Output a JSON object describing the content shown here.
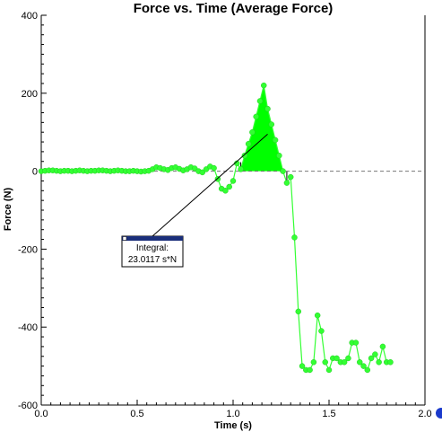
{
  "chart_data": {
    "type": "line",
    "title": "Force vs. Time (Average Force)",
    "xlabel": "Time (s)",
    "ylabel": "Force (N)",
    "xlim": [
      0.0,
      2.0
    ],
    "ylim": [
      -600,
      400
    ],
    "x_ticks": [
      "0.0",
      "0.5",
      "1.0",
      "1.5",
      "2.0"
    ],
    "y_ticks": [
      "400",
      "200",
      "0",
      "-200",
      "-400",
      "-600"
    ],
    "x_tick_values": [
      0,
      0.5,
      1.0,
      1.5,
      2.0
    ],
    "y_tick_values": [
      400,
      200,
      0,
      -200,
      -400,
      -600
    ],
    "zero_line": "dashed",
    "series": [
      {
        "color": "#33ff33",
        "x": [
          0.0,
          0.02,
          0.04,
          0.06,
          0.08,
          0.1,
          0.12,
          0.14,
          0.16,
          0.18,
          0.2,
          0.22,
          0.24,
          0.26,
          0.28,
          0.3,
          0.32,
          0.34,
          0.36,
          0.38,
          0.4,
          0.42,
          0.44,
          0.46,
          0.48,
          0.5,
          0.52,
          0.54,
          0.56,
          0.58,
          0.6,
          0.62,
          0.64,
          0.66,
          0.68,
          0.7,
          0.72,
          0.74,
          0.76,
          0.78,
          0.8,
          0.82,
          0.84,
          0.86,
          0.88,
          0.9,
          0.92,
          0.94,
          0.96,
          0.98,
          1.0,
          1.02,
          1.04,
          1.06,
          1.08,
          1.1,
          1.12,
          1.14,
          1.16,
          1.18,
          1.2,
          1.22,
          1.24,
          1.26,
          1.28,
          1.3,
          1.32,
          1.34,
          1.36,
          1.38,
          1.4,
          1.42,
          1.44,
          1.46,
          1.48,
          1.5,
          1.52,
          1.54,
          1.56,
          1.58,
          1.6,
          1.62,
          1.64,
          1.66,
          1.68,
          1.7,
          1.72,
          1.74,
          1.76,
          1.78,
          1.8,
          1.82
        ],
        "y": [
          0,
          1,
          2,
          2,
          1,
          0,
          1,
          1,
          0,
          1,
          2,
          1,
          0,
          1,
          1,
          2,
          2,
          1,
          0,
          1,
          2,
          1,
          0,
          0,
          1,
          0,
          -1,
          0,
          1,
          5,
          10,
          8,
          5,
          3,
          8,
          10,
          6,
          2,
          5,
          10,
          7,
          0,
          -3,
          5,
          12,
          8,
          -20,
          -45,
          -50,
          -40,
          -25,
          20,
          5,
          40,
          70,
          100,
          140,
          180,
          220,
          160,
          120,
          80,
          40,
          0,
          -30,
          -15,
          -170,
          -360,
          -500,
          -510,
          -510,
          -490,
          -370,
          -410,
          -490,
          -510,
          -480,
          -480,
          -490,
          -490,
          -480,
          -440,
          -440,
          -490,
          -500,
          -510,
          -480,
          -470,
          -490,
          -450,
          -490,
          -490
        ]
      }
    ],
    "shaded_region": {
      "x_from": 1.04,
      "x_to": 1.28,
      "color": "#00ff00"
    },
    "annotation": {
      "label": "Integral:",
      "value": "23.0117 s*N",
      "point_x": 1.18,
      "point_y": 95
    }
  }
}
